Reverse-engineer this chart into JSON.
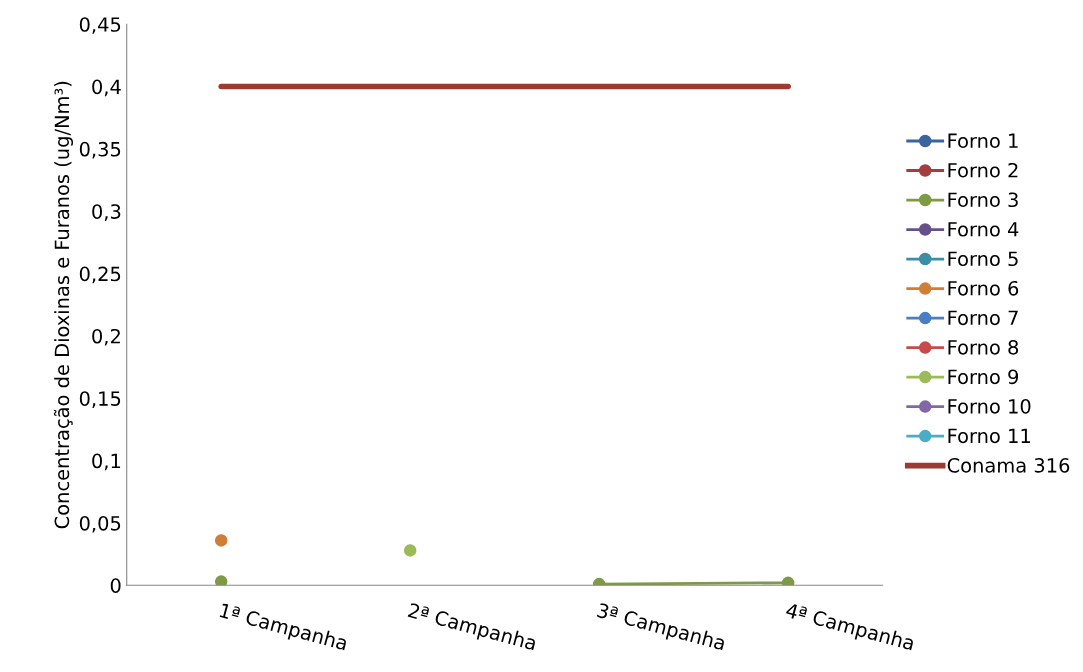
{
  "chart_data": {
    "type": "line",
    "ylabel": "Concentração de Dioxinas e Furanos (ug/Nm³)",
    "categories": [
      "1ª Campanha",
      "2ª Campanha",
      "3ª Campanha",
      "4ª Campanha"
    ],
    "ylim": [
      0,
      0.45
    ],
    "yticks": [
      {
        "value": 0,
        "label": "0"
      },
      {
        "value": 0.05,
        "label": "0,05"
      },
      {
        "value": 0.1,
        "label": "0,1"
      },
      {
        "value": 0.15,
        "label": "0,15"
      },
      {
        "value": 0.2,
        "label": "0,2"
      },
      {
        "value": 0.25,
        "label": "0,25"
      },
      {
        "value": 0.3,
        "label": "0,3"
      },
      {
        "value": 0.35,
        "label": "0,35"
      },
      {
        "value": 0.4,
        "label": "0,4"
      },
      {
        "value": 0.45,
        "label": "0,45"
      }
    ],
    "grid": false,
    "legend": "right",
    "marker": "circle",
    "line_style": "solid",
    "series": [
      {
        "name": "Forno 1",
        "color": "#3a64a0",
        "values": [
          null,
          null,
          null,
          null
        ]
      },
      {
        "name": "Forno 2",
        "color": "#a33e3a",
        "values": [
          null,
          null,
          null,
          null
        ]
      },
      {
        "name": "Forno 3",
        "color": "#7e9a45",
        "values": [
          0.003,
          null,
          0.001,
          0.002
        ]
      },
      {
        "name": "Forno 4",
        "color": "#66508a",
        "values": [
          null,
          null,
          null,
          null
        ]
      },
      {
        "name": "Forno 5",
        "color": "#3a8ea5",
        "values": [
          null,
          null,
          null,
          null
        ]
      },
      {
        "name": "Forno 6",
        "color": "#d27d36",
        "values": [
          0.036,
          null,
          null,
          null
        ]
      },
      {
        "name": "Forno 7",
        "color": "#4a7dc4",
        "values": [
          null,
          null,
          null,
          null
        ]
      },
      {
        "name": "Forno 8",
        "color": "#c24d4b",
        "values": [
          null,
          null,
          null,
          null
        ]
      },
      {
        "name": "Forno 9",
        "color": "#9bbb59",
        "values": [
          null,
          0.028,
          null,
          null
        ]
      },
      {
        "name": "Forno 10",
        "color": "#8166a8",
        "values": [
          null,
          null,
          null,
          null
        ]
      },
      {
        "name": "Forno 11",
        "color": "#4bacc6",
        "values": [
          null,
          null,
          null,
          null
        ]
      },
      {
        "name": "Conama 316",
        "color": "#9c3b34",
        "marker": "none",
        "values": [
          0.4,
          0.4,
          0.4,
          0.4
        ]
      }
    ]
  }
}
